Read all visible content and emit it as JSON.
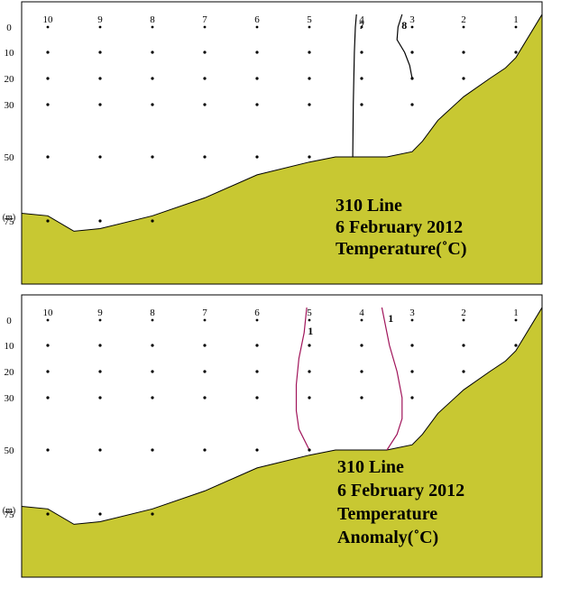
{
  "colors": {
    "seafloor": "#c8c832",
    "frame": "#000000",
    "contour_top": "#000000",
    "contour_bottom": "#a0145a",
    "station_dot": "#000000"
  },
  "chart_data": [
    {
      "type": "contour-section",
      "title_lines": [
        "310 Line",
        "6 February 2012",
        "Temperature(˚C)"
      ],
      "station_labels": [
        "10",
        "9",
        "8",
        "7",
        "6",
        "5",
        "4",
        "3",
        "2",
        "1"
      ],
      "depth_labels": [
        "0",
        "10",
        "20",
        "30",
        "50",
        "75"
      ],
      "depth_unit": "(m)",
      "sample_depths": {
        "10": [
          10,
          20,
          30,
          50,
          75
        ],
        "9": [
          10,
          20,
          30,
          50,
          75
        ],
        "8": [
          10,
          20,
          30,
          50,
          75
        ],
        "7": [
          10,
          20,
          30,
          50
        ],
        "6": [
          10,
          20,
          30,
          50
        ],
        "5": [
          10,
          20,
          30,
          50
        ],
        "4": [
          10,
          20,
          30
        ],
        "3": [
          10,
          20,
          30
        ],
        "2": [
          10,
          20
        ],
        "1": [
          10
        ]
      },
      "contours": [
        {
          "label": "7",
          "points": [
            [
              4.1,
              -5
            ],
            [
              4.12,
              0
            ],
            [
              4.14,
              10
            ],
            [
              4.15,
              20
            ],
            [
              4.16,
              30
            ],
            [
              4.17,
              50
            ]
          ]
        },
        {
          "label": "8",
          "points": [
            [
              3.2,
              -5
            ],
            [
              3.28,
              0
            ],
            [
              3.3,
              5
            ],
            [
              3.15,
              10
            ],
            [
              3.05,
              15
            ],
            [
              3.0,
              20
            ]
          ]
        }
      ],
      "bottom_profile": [
        [
          10.5,
          72
        ],
        [
          10,
          73
        ],
        [
          9.5,
          79
        ],
        [
          9,
          78
        ],
        [
          8,
          73
        ],
        [
          7,
          66
        ],
        [
          6,
          57
        ],
        [
          5,
          52
        ],
        [
          4.5,
          50
        ],
        [
          4,
          50
        ],
        [
          3.5,
          50
        ],
        [
          3,
          48
        ],
        [
          2.8,
          44
        ],
        [
          2.5,
          36
        ],
        [
          2,
          27
        ],
        [
          1.5,
          20
        ],
        [
          1.2,
          16
        ],
        [
          1,
          12
        ],
        [
          0.5,
          -5
        ]
      ],
      "ylim": [
        0,
        85
      ],
      "xlim": [
        10.5,
        0.5
      ]
    },
    {
      "type": "contour-section",
      "title_lines": [
        "310 Line",
        "6 February 2012",
        "Temperature",
        "Anomaly(˚C)"
      ],
      "station_labels": [
        "10",
        "9",
        "8",
        "7",
        "6",
        "5",
        "4",
        "3",
        "2",
        "1"
      ],
      "depth_labels": [
        "0",
        "10",
        "20",
        "30",
        "50",
        "75"
      ],
      "depth_unit": "(m)",
      "sample_depths": {
        "10": [
          10,
          20,
          30,
          50,
          75
        ],
        "9": [
          10,
          20,
          30,
          50,
          75
        ],
        "8": [
          10,
          20,
          30,
          50,
          75
        ],
        "7": [
          10,
          20,
          30,
          50
        ],
        "6": [
          10,
          20,
          30,
          50
        ],
        "5": [
          10,
          20,
          30,
          50
        ],
        "4": [
          10,
          20,
          30
        ],
        "3": [
          10,
          20,
          30
        ],
        "2": [
          10,
          20
        ],
        "1": [
          10
        ]
      },
      "contours": [
        {
          "label": "1",
          "points": [
            [
              5.05,
              -5
            ],
            [
              5.1,
              5
            ],
            [
              5.2,
              15
            ],
            [
              5.25,
              25
            ],
            [
              5.25,
              35
            ],
            [
              5.2,
              42
            ],
            [
              5.0,
              50
            ]
          ]
        },
        {
          "label": "1",
          "points": [
            [
              3.6,
              -5
            ],
            [
              3.55,
              0
            ],
            [
              3.45,
              10
            ],
            [
              3.3,
              20
            ],
            [
              3.2,
              30
            ],
            [
              3.2,
              38
            ],
            [
              3.3,
              44
            ],
            [
              3.5,
              50
            ]
          ]
        }
      ],
      "bottom_profile": [
        [
          10.5,
          72
        ],
        [
          10,
          73
        ],
        [
          9.5,
          79
        ],
        [
          9,
          78
        ],
        [
          8,
          73
        ],
        [
          7,
          66
        ],
        [
          6,
          57
        ],
        [
          5,
          52
        ],
        [
          4.5,
          50
        ],
        [
          4,
          50
        ],
        [
          3.5,
          50
        ],
        [
          3,
          48
        ],
        [
          2.8,
          44
        ],
        [
          2.5,
          36
        ],
        [
          2,
          27
        ],
        [
          1.5,
          20
        ],
        [
          1.2,
          16
        ],
        [
          1,
          12
        ],
        [
          0.5,
          -5
        ]
      ],
      "ylim": [
        0,
        85
      ],
      "xlim": [
        10.5,
        0.5
      ]
    }
  ]
}
